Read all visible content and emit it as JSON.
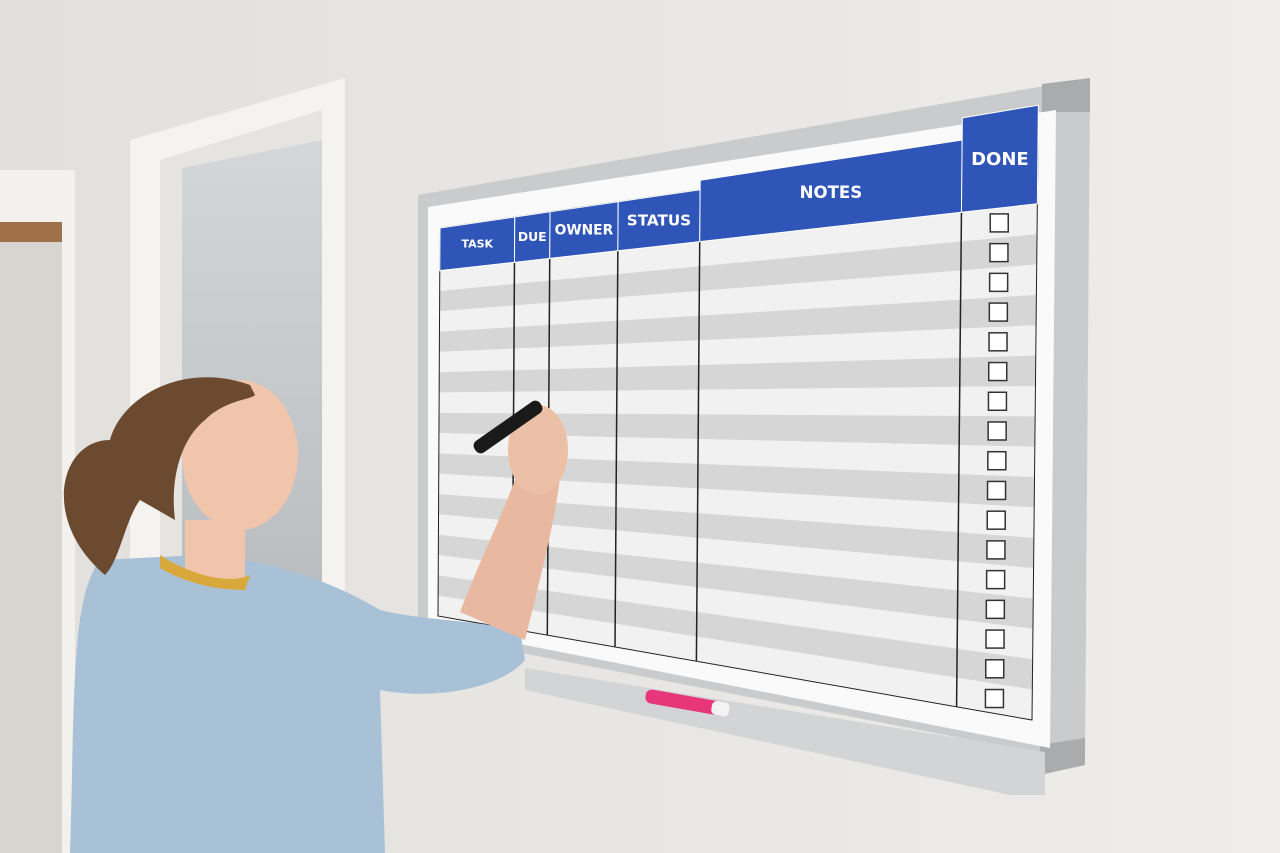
{
  "whiteboard": {
    "columns": [
      {
        "label": "TASK"
      },
      {
        "label": "DUE"
      },
      {
        "label": "OWNER"
      },
      {
        "label": "STATUS"
      },
      {
        "label": "NOTES"
      },
      {
        "label": "DONE"
      }
    ],
    "row_count": 17,
    "colors": {
      "header": "#2f55b8",
      "stripe_light": "#f1f1f1",
      "stripe_dark": "#d6d6d6",
      "frame": "#c9cbcd",
      "marker": "#e8367a"
    }
  }
}
